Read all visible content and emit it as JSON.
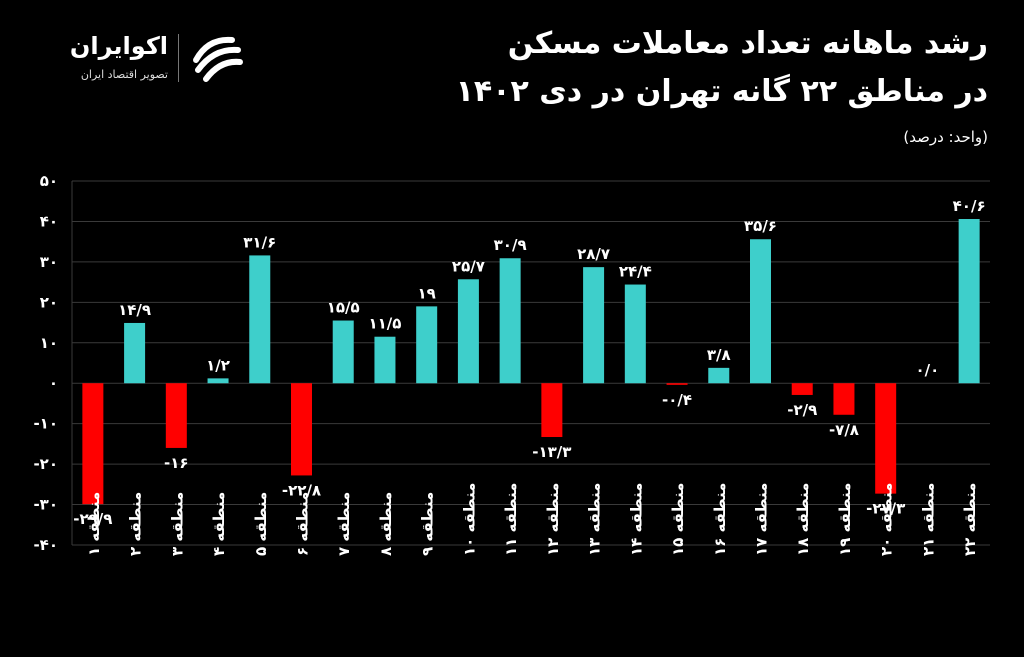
{
  "title": {
    "line1": "رشد ماهانه تعداد معاملات مسکن",
    "line2": "در مناطق ۲۲ گانه تهران در دی ۱۴۰۲",
    "unit": "(واحد: درصد)"
  },
  "logo": {
    "name": "اکوایران",
    "tagline": "تصویر اقتصاد ایران",
    "icon": "ecoiran-logo-icon"
  },
  "colors": {
    "positive": "#3ECFCB",
    "negative": "#FF0000",
    "background": "#000000",
    "grid": "#3a3a3a"
  },
  "chart_data": {
    "type": "bar",
    "categories": [
      "منطقه ۱",
      "منطقه ۲",
      "منطقه ۳",
      "منطقه ۴",
      "منطقه ۵",
      "منطقه ۶",
      "منطقه ۷",
      "منطقه ۸",
      "منطقه ۹",
      "منطقه ۱۰",
      "منطقه ۱۱",
      "منطقه ۱۲",
      "منطقه ۱۳",
      "منطقه ۱۴",
      "منطقه ۱۵",
      "منطقه ۱۶",
      "منطقه ۱۷",
      "منطقه ۱۸",
      "منطقه ۱۹",
      "منطقه ۲۰",
      "منطقه ۲۱",
      "منطقه ۲۲"
    ],
    "values": [
      -29.9,
      14.9,
      -16,
      1.2,
      31.6,
      -22.8,
      15.5,
      11.5,
      19,
      25.7,
      30.9,
      -13.3,
      28.7,
      24.4,
      -0.4,
      3.8,
      35.6,
      -2.9,
      -7.8,
      -27.3,
      0,
      40.6
    ],
    "value_labels": [
      "-۲۹/۹",
      "۱۴/۹",
      "-۱۶",
      "۱/۲",
      "۳۱/۶",
      "-۲۲/۸",
      "۱۵/۵",
      "۱۱/۵",
      "۱۹",
      "۲۵/۷",
      "۳۰/۹",
      "-۱۳/۳",
      "۲۸/۷",
      "۲۴/۴",
      "-۰/۴",
      "۳/۸",
      "۳۵/۶",
      "-۲/۹",
      "-۷/۸",
      "-۲۷/۳",
      "۰/۰",
      "۴۰/۶"
    ],
    "yticks": [
      50,
      40,
      30,
      20,
      10,
      0,
      -10,
      -20,
      -30,
      -40
    ],
    "ytick_labels": [
      "۵۰",
      "۴۰",
      "۳۰",
      "۲۰",
      "۱۰",
      "۰",
      "-۱۰",
      "-۲۰",
      "-۳۰",
      "-۴۰"
    ],
    "ylim": [
      -40,
      50
    ],
    "grid": true,
    "legend": "none"
  }
}
